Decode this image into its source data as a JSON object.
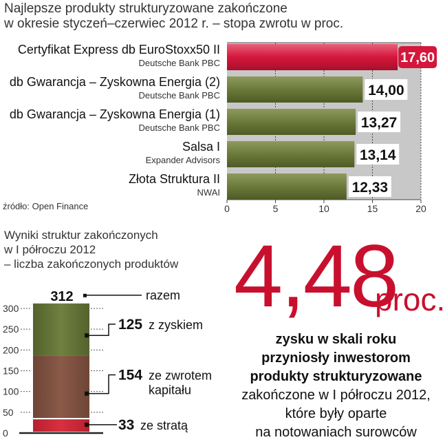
{
  "top_chart": {
    "title_line1": "Najlepsze produkty strukturyzowane zakończone",
    "title_line2": "w okresie styczeń–czerwiec 2012 r. – stopa zwrotu w proc.",
    "source": "źródło: Open Finance"
  },
  "bottom_chart": {
    "title_line1": "Wyniki struktur zakończonych",
    "title_line2": "w I półroczu 2012",
    "title_line3": "– liczba zakończonych produktów"
  },
  "highlight": {
    "value": "4,48",
    "unit": "proc.",
    "desc_bold_1": "zysku w skali roku",
    "desc_bold_2": "przyniosły inwestorom",
    "desc_bold_3": "produkty strukturyzowane",
    "desc_4": "zakończone w I półroczu 2012,",
    "desc_5": "które były oparte",
    "desc_6": "na notowaniach surowców"
  },
  "colors": {
    "olive_bar": "#6b7a3a",
    "highlight_bar": "#d4173b",
    "gray_bg": "#c8c8c8",
    "red_text": "#c8102e",
    "profit": "#6f8040",
    "capital": "#8a5a48",
    "loss": "#d83040"
  },
  "chart_data": [
    {
      "type": "bar",
      "orientation": "horizontal",
      "categories": [
        "Certyfikat Express db EuroStoxx50 II",
        "db Gwarancja – Zyskowna Energia (2)",
        "db Gwarancja – Zyskowna Energia (1)",
        "Salsa I",
        "Złota Struktura II"
      ],
      "subtitles": [
        "Deutsche Bank PBC",
        "Deutsche Bank PBC",
        "Deutsche Bank PBC",
        "Expander Advisors",
        "NWAI"
      ],
      "values": [
        17.6,
        14.0,
        13.27,
        13.14,
        12.33
      ],
      "value_labels": [
        "17,60",
        "14,00",
        "13,27",
        "13,14",
        "12,33"
      ],
      "x_ticks": [
        "0",
        "5",
        "10",
        "15",
        "20"
      ],
      "xlim": [
        0,
        20
      ],
      "title": "Najlepsze produkty strukturyzowane zakończone w okresie styczeń–czerwiec 2012 r. – stopa zwrotu w proc."
    },
    {
      "type": "bar",
      "orientation": "stacked-vertical",
      "total": 312,
      "total_label": "312",
      "total_text": "razem",
      "segments": [
        {
          "name": "ze stratą",
          "value": 33,
          "label": "33"
        },
        {
          "name": "ze zwrotem kapitału",
          "value": 154,
          "label": "154",
          "text_line1": "ze zwrotem",
          "text_line2": "kapitału"
        },
        {
          "name": "z zyskiem",
          "value": 125,
          "label": "125"
        }
      ],
      "y_ticks": [
        "0",
        "50",
        "100",
        "150",
        "200",
        "250",
        "300"
      ],
      "ylim": [
        0,
        312
      ],
      "title": "Wyniki struktur zakończonych w I półroczu 2012 – liczba zakończonych produktów"
    }
  ]
}
